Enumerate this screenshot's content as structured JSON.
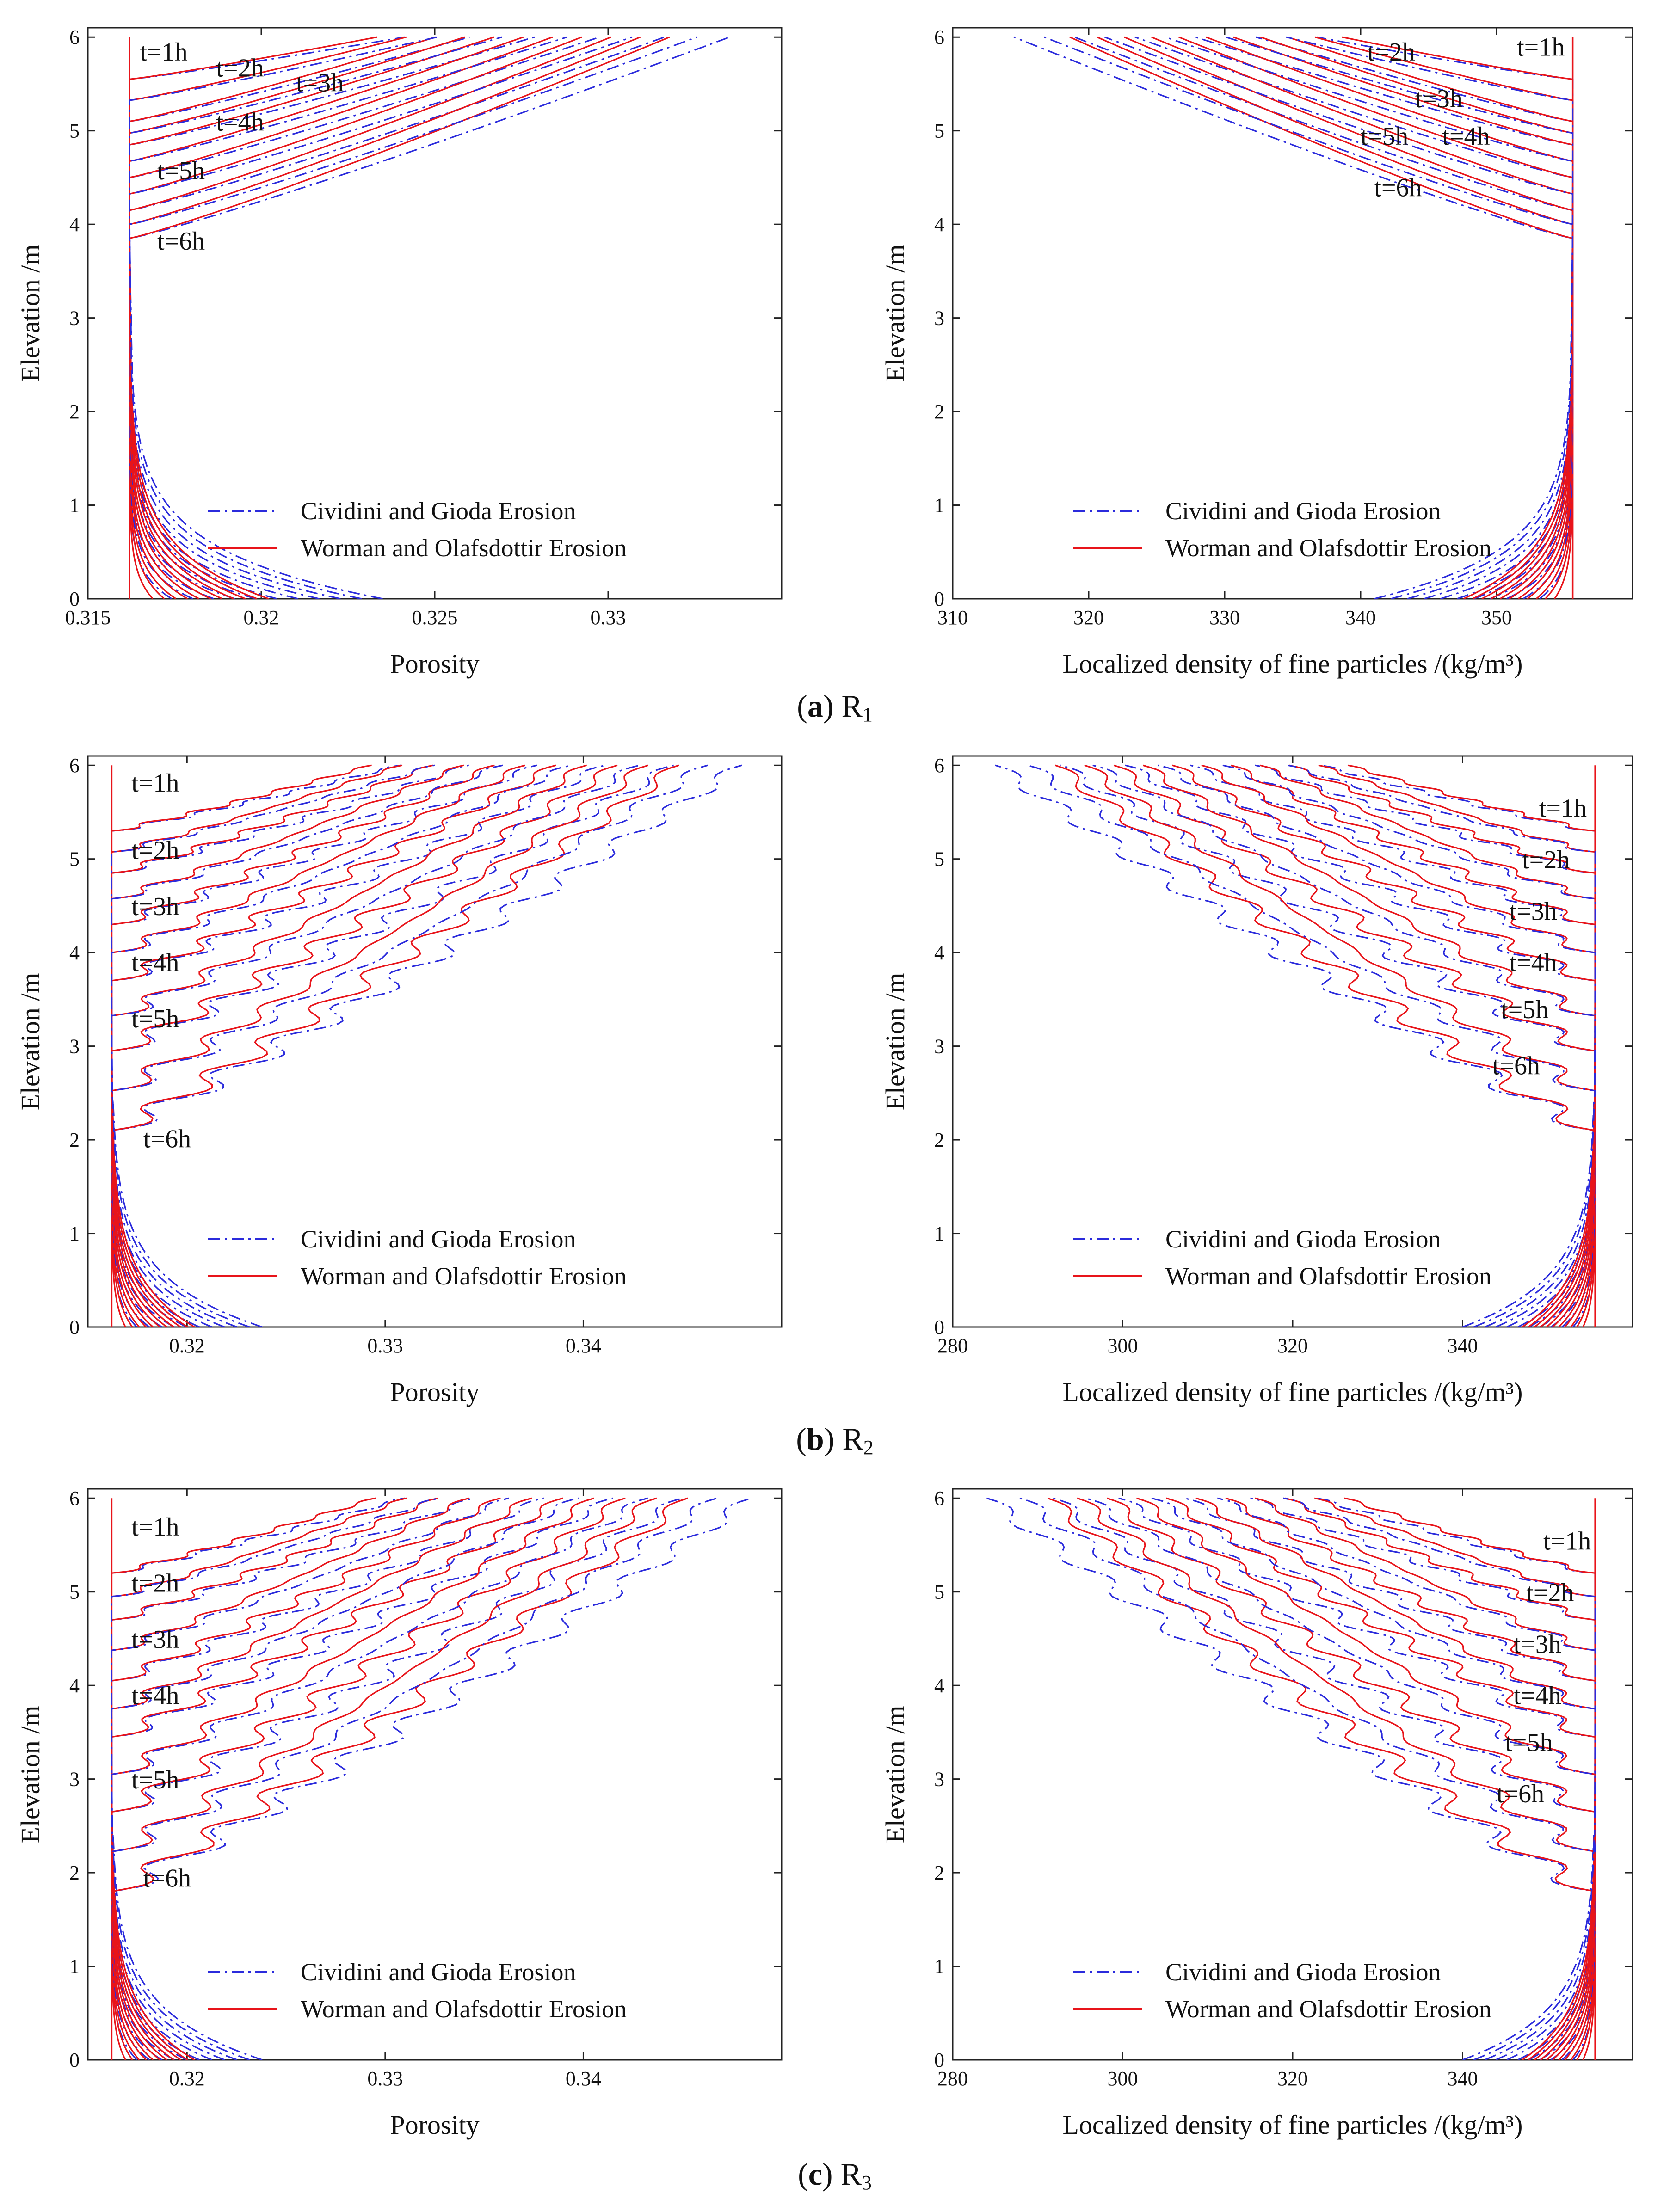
{
  "figure": {
    "captions": [
      {
        "letter": "a",
        "label": "R",
        "sub": "1"
      },
      {
        "letter": "b",
        "label": "R",
        "sub": "2"
      },
      {
        "letter": "c",
        "label": "R",
        "sub": "3"
      }
    ]
  },
  "legend": {
    "cividini": "Cividini and Gioda  Erosion",
    "worman": "Worman and Olafsdottir Erosion"
  },
  "colors": {
    "cividini": "#2b2bdc",
    "worman": "#e8141a",
    "axis": "#222222"
  },
  "time_labels": [
    "t=1h",
    "t=2h",
    "t=3h",
    "t=4h",
    "t=5h",
    "t=6h"
  ],
  "chart_data": [
    {
      "id": "a-porosity",
      "type": "line",
      "row": "a",
      "side": "porosity",
      "xlabel": "Porosity",
      "ylabel": "Elevation /m",
      "xlim": [
        0.315,
        0.335
      ],
      "ylim": [
        0,
        6.1
      ],
      "xticks": [
        0.315,
        0.32,
        0.325,
        0.33
      ],
      "xtick_labels": [
        "0.315",
        "0.32",
        "0.325",
        "0.33"
      ],
      "yticks": [
        0,
        1,
        2,
        3,
        4,
        5,
        6
      ],
      "ytick_labels": [
        "0",
        "1",
        "2",
        "3",
        "4",
        "5",
        "6"
      ],
      "baseline": 0.3162,
      "top_value": 0.3335,
      "bottom_value": 0.3235,
      "fronts": [
        5.55,
        5.1,
        4.85,
        4.5,
        4.15,
        3.85
      ],
      "wavy": false,
      "curves_per_hour": 2,
      "series": [
        {
          "name": "Cividini and Gioda  Erosion",
          "style": "dash-dot",
          "color": "#2b2bdc"
        },
        {
          "name": "Worman and Olafsdottir Erosion",
          "style": "solid",
          "color": "#e8141a"
        }
      ],
      "annotations": [
        {
          "text": "t=1h",
          "x": 0.3165,
          "y": 5.75
        },
        {
          "text": "t=2h",
          "x": 0.3187,
          "y": 5.58
        },
        {
          "text": "t=3h",
          "x": 0.321,
          "y": 5.42
        },
        {
          "text": "t=4h",
          "x": 0.3187,
          "y": 5.0
        },
        {
          "text": "t=5h",
          "x": 0.317,
          "y": 4.48
        },
        {
          "text": "t=6h",
          "x": 0.317,
          "y": 3.73
        }
      ]
    },
    {
      "id": "a-density",
      "type": "line",
      "row": "a",
      "side": "density",
      "xlabel": "Localized density of fine particles /(kg/m³)",
      "ylabel": "Elevation /m",
      "xlim": [
        310,
        360
      ],
      "ylim": [
        0,
        6.1
      ],
      "xticks": [
        310,
        320,
        330,
        340,
        350
      ],
      "xtick_labels": [
        "310",
        "320",
        "330",
        "340",
        "350"
      ],
      "yticks": [
        0,
        1,
        2,
        3,
        4,
        5,
        6
      ],
      "ytick_labels": [
        "0",
        "1",
        "2",
        "3",
        "4",
        "5",
        "6"
      ],
      "baseline": 355.6,
      "top_value": 314.5,
      "bottom_value": 341,
      "fronts": [
        5.55,
        5.1,
        4.85,
        4.5,
        4.15,
        3.85
      ],
      "wavy": false,
      "curves_per_hour": 2,
      "series": [
        {
          "name": "Cividini and Gioda  Erosion",
          "style": "dash-dot",
          "color": "#2b2bdc"
        },
        {
          "name": "Worman and Olafsdottir Erosion",
          "style": "solid",
          "color": "#e8141a"
        }
      ],
      "annotations": [
        {
          "text": "t=1h",
          "x": 351.5,
          "y": 5.8
        },
        {
          "text": "t=2h",
          "x": 340.5,
          "y": 5.75
        },
        {
          "text": "t=3h",
          "x": 344.0,
          "y": 5.25
        },
        {
          "text": "t=4h",
          "x": 346.0,
          "y": 4.85
        },
        {
          "text": "t=5h",
          "x": 340.0,
          "y": 4.85
        },
        {
          "text": "t=6h",
          "x": 341.0,
          "y": 4.3
        }
      ]
    },
    {
      "id": "b-porosity",
      "type": "line",
      "row": "b",
      "side": "porosity",
      "xlabel": "Porosity",
      "ylabel": "Elevation /m",
      "xlim": [
        0.315,
        0.35
      ],
      "ylim": [
        0,
        6.1
      ],
      "xticks": [
        0.32,
        0.33,
        0.34
      ],
      "xtick_labels": [
        "0.32",
        "0.33",
        "0.34"
      ],
      "yticks": [
        0,
        1,
        2,
        3,
        4,
        5,
        6
      ],
      "ytick_labels": [
        "0",
        "1",
        "2",
        "3",
        "4",
        "5",
        "6"
      ],
      "baseline": 0.3162,
      "top_value": 0.348,
      "bottom_value": 0.3238,
      "fronts": [
        5.3,
        4.85,
        4.3,
        3.7,
        2.95,
        2.1
      ],
      "wavy": true,
      "curves_per_hour": 2,
      "series": [
        {
          "name": "Cividini and Gioda  Erosion",
          "style": "dash-dot",
          "color": "#2b2bdc"
        },
        {
          "name": "Worman and Olafsdottir Erosion",
          "style": "solid",
          "color": "#e8141a"
        }
      ],
      "annotations": [
        {
          "text": "t=1h",
          "x": 0.3172,
          "y": 5.72
        },
        {
          "text": "t=2h",
          "x": 0.3172,
          "y": 5.0
        },
        {
          "text": "t=3h",
          "x": 0.3172,
          "y": 4.4
        },
        {
          "text": "t=4h",
          "x": 0.3172,
          "y": 3.8
        },
        {
          "text": "t=5h",
          "x": 0.3172,
          "y": 3.2
        },
        {
          "text": "t=6h",
          "x": 0.3178,
          "y": 1.92
        }
      ]
    },
    {
      "id": "b-density",
      "type": "line",
      "row": "b",
      "side": "density",
      "xlabel": "Localized density of fine particles /(kg/m³)",
      "ylabel": "Elevation /m",
      "xlim": [
        280,
        360
      ],
      "ylim": [
        0,
        6.1
      ],
      "xticks": [
        280,
        300,
        320,
        340
      ],
      "xtick_labels": [
        "280",
        "300",
        "320",
        "340"
      ],
      "yticks": [
        0,
        1,
        2,
        3,
        4,
        5,
        6
      ],
      "ytick_labels": [
        "0",
        "1",
        "2",
        "3",
        "4",
        "5",
        "6"
      ],
      "baseline": 355.6,
      "top_value": 285,
      "bottom_value": 340,
      "fronts": [
        5.3,
        4.85,
        4.3,
        3.7,
        2.95,
        2.1
      ],
      "wavy": true,
      "curves_per_hour": 2,
      "series": [
        {
          "name": "Cividini and Gioda  Erosion",
          "style": "dash-dot",
          "color": "#2b2bdc"
        },
        {
          "name": "Worman and Olafsdottir Erosion",
          "style": "solid",
          "color": "#e8141a"
        }
      ],
      "annotations": [
        {
          "text": "t=1h",
          "x": 349.0,
          "y": 5.45
        },
        {
          "text": "t=2h",
          "x": 347.0,
          "y": 4.9
        },
        {
          "text": "t=3h",
          "x": 345.5,
          "y": 4.35
        },
        {
          "text": "t=4h",
          "x": 345.5,
          "y": 3.8
        },
        {
          "text": "t=5h",
          "x": 344.5,
          "y": 3.3
        },
        {
          "text": "t=6h",
          "x": 343.5,
          "y": 2.7
        }
      ]
    },
    {
      "id": "c-porosity",
      "type": "line",
      "row": "c",
      "side": "porosity",
      "xlabel": "Porosity",
      "ylabel": "Elevation /m",
      "xlim": [
        0.315,
        0.35
      ],
      "ylim": [
        0,
        6.1
      ],
      "xticks": [
        0.32,
        0.33,
        0.34
      ],
      "xtick_labels": [
        "0.32",
        "0.33",
        "0.34"
      ],
      "yticks": [
        0,
        1,
        2,
        3,
        4,
        5,
        6
      ],
      "ytick_labels": [
        "0",
        "1",
        "2",
        "3",
        "4",
        "5",
        "6"
      ],
      "baseline": 0.3162,
      "top_value": 0.3485,
      "bottom_value": 0.3238,
      "fronts": [
        5.2,
        4.7,
        4.05,
        3.45,
        2.65,
        1.8
      ],
      "wavy": true,
      "curves_per_hour": 2,
      "series": [
        {
          "name": "Cividini and Gioda  Erosion",
          "style": "dash-dot",
          "color": "#2b2bdc"
        },
        {
          "name": "Worman and Olafsdottir Erosion",
          "style": "solid",
          "color": "#e8141a"
        }
      ],
      "annotations": [
        {
          "text": "t=1h",
          "x": 0.3172,
          "y": 5.6
        },
        {
          "text": "t=2h",
          "x": 0.3172,
          "y": 5.0
        },
        {
          "text": "t=3h",
          "x": 0.3172,
          "y": 4.4
        },
        {
          "text": "t=4h",
          "x": 0.3172,
          "y": 3.8
        },
        {
          "text": "t=5h",
          "x": 0.3172,
          "y": 2.9
        },
        {
          "text": "t=6h",
          "x": 0.3178,
          "y": 1.85
        }
      ]
    },
    {
      "id": "c-density",
      "type": "line",
      "row": "c",
      "side": "density",
      "xlabel": "Localized density of fine particles /(kg/m³)",
      "ylabel": "Elevation /m",
      "xlim": [
        280,
        360
      ],
      "ylim": [
        0,
        6.1
      ],
      "xticks": [
        280,
        300,
        320,
        340
      ],
      "xtick_labels": [
        "280",
        "300",
        "320",
        "340"
      ],
      "yticks": [
        0,
        1,
        2,
        3,
        4,
        5,
        6
      ],
      "ytick_labels": [
        "0",
        "1",
        "2",
        "3",
        "4",
        "5",
        "6"
      ],
      "baseline": 355.6,
      "top_value": 284,
      "bottom_value": 340,
      "fronts": [
        5.2,
        4.7,
        4.05,
        3.45,
        2.65,
        1.8
      ],
      "wavy": true,
      "curves_per_hour": 2,
      "series": [
        {
          "name": "Cividini and Gioda  Erosion",
          "style": "dash-dot",
          "color": "#2b2bdc"
        },
        {
          "name": "Worman and Olafsdottir Erosion",
          "style": "solid",
          "color": "#e8141a"
        }
      ],
      "annotations": [
        {
          "text": "t=1h",
          "x": 349.5,
          "y": 5.45
        },
        {
          "text": "t=2h",
          "x": 347.5,
          "y": 4.9
        },
        {
          "text": "t=3h",
          "x": 346.0,
          "y": 4.35
        },
        {
          "text": "t=4h",
          "x": 346.0,
          "y": 3.8
        },
        {
          "text": "t=5h",
          "x": 345.0,
          "y": 3.3
        },
        {
          "text": "t=6h",
          "x": 344.0,
          "y": 2.75
        }
      ]
    }
  ]
}
